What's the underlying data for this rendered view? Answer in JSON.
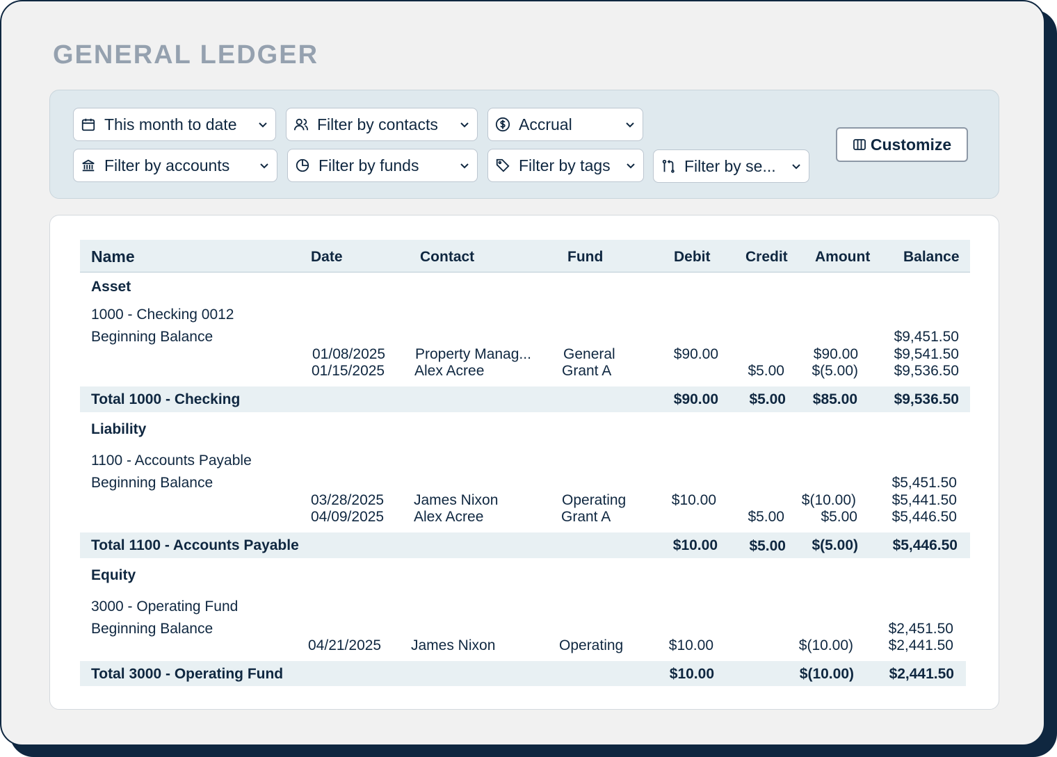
{
  "page": {
    "title": "GENERAL LEDGER"
  },
  "filters": {
    "date_range": "This month to date",
    "contacts": "Filter by contacts",
    "basis": "Accrual",
    "accounts": "Filter by accounts",
    "funds": "Filter by funds",
    "tags": "Filter by tags",
    "segments": "Filter by se..."
  },
  "customize_label": "Customize",
  "table": {
    "headers": {
      "name": "Name",
      "date": "Date",
      "contact": "Contact",
      "fund": "Fund",
      "debit": "Debit",
      "credit": "Credit",
      "amount": "Amount",
      "balance": "Balance"
    },
    "sections": [
      {
        "group": "Asset",
        "account": "1000 - Checking 0012",
        "beginning_label": "Beginning Balance",
        "beginning_balance": "$9,451.50",
        "rows": [
          {
            "date": "01/08/2025",
            "contact": "Property Manag...",
            "fund": "General",
            "debit": "$90.00",
            "credit": "",
            "amount": "$90.00",
            "balance": "$9,541.50"
          },
          {
            "date": "01/15/2025",
            "contact": "Alex Acree",
            "fund": "Grant A",
            "debit": "",
            "credit": "$5.00",
            "amount": "$(5.00)",
            "balance": "$9,536.50"
          }
        ],
        "total": {
          "label": "Total 1000 - Checking",
          "debit": "$90.00",
          "credit": "$5.00",
          "amount": "$85.00",
          "balance": "$9,536.50"
        }
      },
      {
        "group": "Liability",
        "account": "1100 - Accounts Payable",
        "beginning_label": "Beginning Balance",
        "beginning_balance": "$5,451.50",
        "rows": [
          {
            "date": "03/28/2025",
            "contact": "James Nixon",
            "fund": "Operating",
            "debit": "$10.00",
            "credit": "",
            "amount": "$(10.00)",
            "balance": "$5,441.50"
          },
          {
            "date": "04/09/2025",
            "contact": "Alex Acree",
            "fund": "Grant A",
            "debit": "",
            "credit": "$5.00",
            "amount": "$5.00",
            "balance": "$5,446.50"
          }
        ],
        "total": {
          "label": "Total 1100 - Accounts Payable",
          "debit": "$10.00",
          "credit": "$5.00",
          "amount": "$(5.00)",
          "balance": "$5,446.50"
        }
      },
      {
        "group": "Equity",
        "account": "3000 - Operating Fund",
        "beginning_label": "Beginning Balance",
        "beginning_balance": "$2,451.50",
        "rows": [
          {
            "date": "04/21/2025",
            "contact": "James Nixon",
            "fund": "Operating",
            "debit": "$10.00",
            "credit": "",
            "amount": "$(10.00)",
            "balance": "$2,441.50"
          }
        ],
        "total": {
          "label": "Total 3000 - Operating Fund",
          "debit": "$10.00",
          "credit": "",
          "amount": "$(10.00)",
          "balance": "$2,441.50"
        }
      }
    ]
  }
}
